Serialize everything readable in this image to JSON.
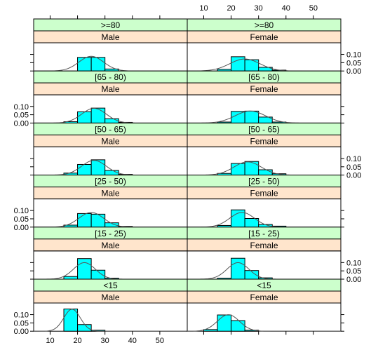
{
  "chart_data": {
    "type": "histogram-lattice",
    "title": "",
    "xlabel": "",
    "ylabel": "",
    "x_ticks": [
      10,
      20,
      30,
      40,
      50
    ],
    "y_ticks": [
      "0.00",
      "0.05",
      "0.10"
    ],
    "xlim": [
      4,
      60
    ],
    "ylim": [
      0,
      0.17
    ],
    "bin_edges": [
      10,
      15,
      20,
      25,
      30,
      35,
      40,
      45,
      50
    ],
    "colors": {
      "bar": "#00ffff",
      "curve": "#555555",
      "age_strip": "#ccffcc",
      "sex_strip": "#ffe5cc"
    },
    "panels": [
      {
        "age": ">=80",
        "sex": "Male",
        "density": [
          0,
          0,
          0.082,
          0.082,
          0.012,
          0,
          0,
          0
        ],
        "mean": 25,
        "sd": 4.5
      },
      {
        "age": ">=80",
        "sex": "Female",
        "density": [
          0,
          0.01,
          0.086,
          0.068,
          0.022,
          0.005,
          0,
          0
        ],
        "mean": 25,
        "sd": 5.5
      },
      {
        "age": "[65 - 80)",
        "sex": "Male",
        "density": [
          0,
          0.008,
          0.068,
          0.09,
          0.026,
          0.004,
          0,
          0
        ],
        "mean": 26,
        "sd": 4.5
      },
      {
        "age": "[65 - 80)",
        "sex": "Female",
        "density": [
          0,
          0.006,
          0.07,
          0.072,
          0.036,
          0.006,
          0,
          0
        ],
        "mean": 27,
        "sd": 5.5
      },
      {
        "age": "[50 - 65)",
        "sex": "Male",
        "density": [
          0,
          0.012,
          0.064,
          0.092,
          0.028,
          0.004,
          0,
          0
        ],
        "mean": 26,
        "sd": 4.5
      },
      {
        "age": "[50 - 65)",
        "sex": "Female",
        "density": [
          0,
          0.01,
          0.07,
          0.082,
          0.032,
          0.008,
          0,
          0
        ],
        "mean": 26,
        "sd": 5
      },
      {
        "age": "[25 - 50)",
        "sex": "Male",
        "density": [
          0,
          0.012,
          0.082,
          0.078,
          0.026,
          0.004,
          0,
          0
        ],
        "mean": 25,
        "sd": 4.5
      },
      {
        "age": "[25 - 50)",
        "sex": "Female",
        "density": [
          0,
          0.01,
          0.104,
          0.052,
          0.016,
          0.006,
          0,
          0
        ],
        "mean": 24,
        "sd": 4.5
      },
      {
        "age": "[15 - 25)",
        "sex": "Male",
        "density": [
          0,
          0.016,
          0.124,
          0.054,
          0.006,
          0,
          0,
          0
        ],
        "mean": 22.5,
        "sd": 4
      },
      {
        "age": "[15 - 25)",
        "sex": "Female",
        "density": [
          0,
          0.006,
          0.126,
          0.052,
          0.008,
          0,
          0,
          0
        ],
        "mean": 22.5,
        "sd": 4
      },
      {
        "age": "<15",
        "sex": "Male",
        "density": [
          0,
          0.134,
          0.04,
          0.006,
          0,
          0,
          0,
          0
        ],
        "mean": 18,
        "sd": 3
      },
      {
        "age": "<15",
        "sex": "Female",
        "density": [
          0.01,
          0.098,
          0.064,
          0.006,
          0,
          0,
          0,
          0
        ],
        "mean": 19,
        "sd": 4
      }
    ]
  }
}
